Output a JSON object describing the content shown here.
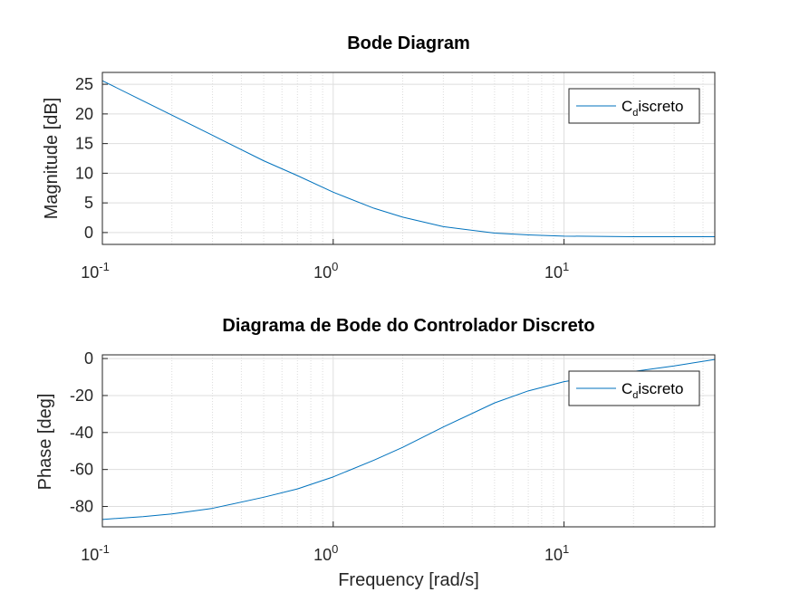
{
  "chart_data": [
    {
      "type": "line",
      "title": "Bode Diagram",
      "xlabel": "",
      "ylabel": "Magnitude [dB]",
      "xscale": "log",
      "xlim": [
        0.1,
        45
      ],
      "ylim": [
        -2,
        27
      ],
      "xticks": [
        {
          "base": "10",
          "exp": "-1"
        },
        {
          "base": "10",
          "exp": "0"
        },
        {
          "base": "10",
          "exp": "1"
        }
      ],
      "yticks": [
        "0",
        "5",
        "10",
        "15",
        "20",
        "25"
      ],
      "grid": true,
      "legend_position": "top-right",
      "series": [
        {
          "name_main": "C",
          "name_sub": "d",
          "name_rest": "iscreto",
          "color": "#0072bd",
          "x": [
            0.1,
            0.15,
            0.2,
            0.3,
            0.5,
            0.7,
            1.0,
            1.5,
            2.0,
            3.0,
            5.0,
            7.0,
            10.0,
            20.0,
            45.0
          ],
          "y": [
            25.6,
            22.2,
            19.8,
            16.4,
            12.1,
            9.6,
            6.8,
            4.1,
            2.6,
            1.0,
            -0.1,
            -0.4,
            -0.6,
            -0.7,
            -0.7
          ]
        }
      ]
    },
    {
      "type": "line",
      "title": "Diagrama de Bode do Controlador Discreto",
      "xlabel": "Frequency [rad/s]",
      "ylabel": "Phase [deg]",
      "xscale": "log",
      "xlim": [
        0.1,
        45
      ],
      "ylim": [
        -91,
        2
      ],
      "xticks": [
        {
          "base": "10",
          "exp": "-1"
        },
        {
          "base": "10",
          "exp": "0"
        },
        {
          "base": "10",
          "exp": "1"
        }
      ],
      "yticks": [
        "-80",
        "-60",
        "-40",
        "-20",
        "0"
      ],
      "grid": true,
      "legend_position": "top-right",
      "series": [
        {
          "name_main": "C",
          "name_sub": "d",
          "name_rest": "iscreto",
          "color": "#0072bd",
          "x": [
            0.1,
            0.15,
            0.2,
            0.3,
            0.5,
            0.7,
            1.0,
            1.5,
            2.0,
            3.0,
            5.0,
            7.0,
            10.0,
            15.0,
            20.0,
            30.0,
            45.0
          ],
          "y": [
            -87,
            -85.5,
            -84,
            -81,
            -75,
            -70.5,
            -64,
            -55,
            -48,
            -37,
            -24,
            -17.5,
            -12.5,
            -9,
            -7,
            -4,
            -0.5
          ]
        }
      ]
    }
  ]
}
